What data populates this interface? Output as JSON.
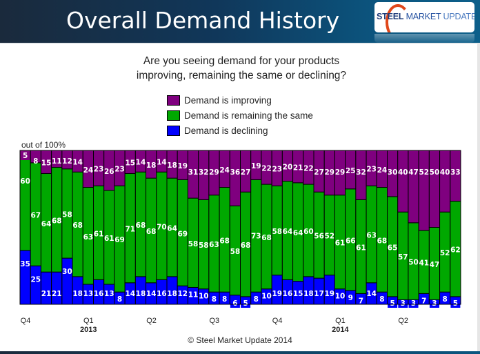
{
  "header": {
    "title": "Overall Demand History",
    "logo": {
      "steel": "STEEL",
      "market": "MARKET",
      "update": "UPDATE"
    }
  },
  "question": {
    "line1": "Are you seeing demand for your products",
    "line2": "improving, remaining the same or declining?"
  },
  "footer": {
    "copyright": "© Steel Market Update 2014"
  },
  "chart_data": {
    "type": "bar",
    "stacked": true,
    "percent_stacked": true,
    "title": "Are you seeing demand for your products improving, remaining the same or declining?",
    "ylabel": "out of 100%",
    "xlabel": "",
    "ylim": [
      0,
      100
    ],
    "grid": false,
    "legend_position": "top-center",
    "x_tick_labels": [
      {
        "bar_index": 0,
        "label": "Q4",
        "year": ""
      },
      {
        "bar_index": 6,
        "label": "Q1",
        "year": "2013"
      },
      {
        "bar_index": 12,
        "label": "Q2",
        "year": ""
      },
      {
        "bar_index": 18,
        "label": "Q3",
        "year": ""
      },
      {
        "bar_index": 24,
        "label": "Q4",
        "year": ""
      },
      {
        "bar_index": 30,
        "label": "Q1",
        "year": "2014"
      },
      {
        "bar_index": 36,
        "label": "Q2",
        "year": ""
      }
    ],
    "series": [
      {
        "name": "Demand is declining",
        "color": "#0000ff",
        "values": [
          35,
          25,
          21,
          21,
          30,
          18,
          13,
          16,
          13,
          8,
          14,
          18,
          14,
          16,
          18,
          12,
          11,
          10,
          8,
          8,
          6,
          5,
          8,
          10,
          19,
          16,
          15,
          18,
          17,
          19,
          10,
          9,
          7,
          14,
          8,
          5,
          3,
          3,
          7,
          3,
          8,
          5
        ]
      },
      {
        "name": "Demand is remaining the same",
        "color": "#00a800",
        "values": [
          60,
          67,
          64,
          68,
          58,
          68,
          63,
          61,
          61,
          69,
          71,
          68,
          68,
          70,
          64,
          69,
          58,
          58,
          63,
          68,
          58,
          68,
          73,
          68,
          58,
          64,
          64,
          60,
          56,
          52,
          61,
          66,
          61,
          63,
          68,
          65,
          57,
          50,
          41,
          47,
          52,
          62
        ]
      },
      {
        "name": "Demand is improving",
        "color": "#7f007f",
        "values": [
          5,
          8,
          15,
          11,
          12,
          14,
          24,
          23,
          26,
          23,
          15,
          14,
          18,
          14,
          18,
          19,
          31,
          32,
          29,
          24,
          36,
          27,
          19,
          22,
          23,
          20,
          21,
          22,
          27,
          29,
          29,
          25,
          32,
          23,
          24,
          30,
          40,
          47,
          52,
          50,
          40,
          33
        ]
      }
    ],
    "legend_order": [
      "Demand is improving",
      "Demand is remaining the same",
      "Demand is declining"
    ]
  }
}
